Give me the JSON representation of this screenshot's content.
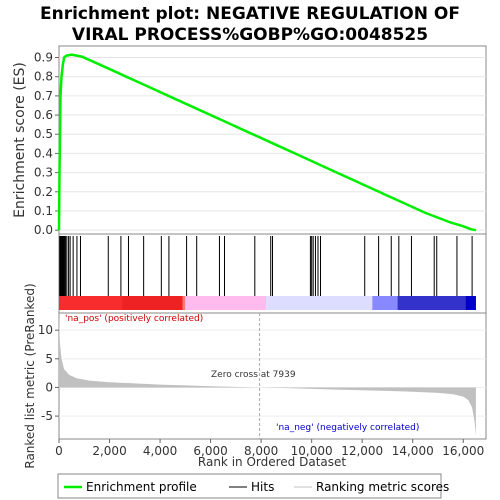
{
  "title_line1": "Enrichment plot: NEGATIVE REGULATION OF",
  "title_line2": "VIRAL PROCESS%GOBP%GO:0048525",
  "chart_data": [
    {
      "type": "line",
      "ylabel": "Enrichment score (ES)",
      "ylim": [
        -0.02,
        0.96
      ],
      "yticks": [
        0.0,
        0.1,
        0.2,
        0.3,
        0.4,
        0.5,
        0.6,
        0.7,
        0.8,
        0.9
      ],
      "ytick_labels": [
        "0.0",
        "0.1",
        "0.2",
        "0.3",
        "0.4",
        "0.5",
        "0.6",
        "0.7",
        "0.8",
        "0.9"
      ],
      "xlim": [
        0,
        16900
      ],
      "series": [
        {
          "name": "Enrichment profile",
          "color": "#00ee00",
          "x": [
            0,
            20,
            60,
            100,
            150,
            200,
            300,
            500,
            700,
            900,
            1500,
            2500,
            3500,
            4500,
            5500,
            6500,
            7500,
            8500,
            9500,
            10500,
            11500,
            12500,
            13500,
            14500,
            15500,
            16000,
            16300,
            16500
          ],
          "y": [
            0.0,
            0.3,
            0.7,
            0.8,
            0.86,
            0.9,
            0.91,
            0.915,
            0.91,
            0.905,
            0.87,
            0.81,
            0.75,
            0.69,
            0.63,
            0.57,
            0.51,
            0.45,
            0.39,
            0.33,
            0.27,
            0.21,
            0.15,
            0.09,
            0.04,
            0.02,
            0.005,
            0.0
          ]
        }
      ]
    },
    {
      "type": "hits",
      "legend_name": "Hits",
      "hit_positions": [
        30,
        60,
        90,
        110,
        130,
        150,
        170,
        190,
        220,
        260,
        310,
        380,
        440,
        560,
        710,
        850,
        1950,
        2450,
        2750,
        3350,
        4050,
        4350,
        5050,
        5450,
        6350,
        6550,
        7750,
        8380,
        8450,
        9950,
        10000,
        10060,
        10150,
        10250,
        10350,
        12100,
        12650,
        13150,
        13450,
        13950,
        14850,
        14950,
        15750,
        16350
      ],
      "color_bar": [
        "#ee2222",
        "#ff7777",
        "#ffbbee",
        "#ddddff",
        "#8888ff",
        "#3333cc"
      ]
    },
    {
      "type": "area",
      "ylabel": "Ranked list metric (PreRanked)",
      "xlabel": "Rank in Ordered Dataset",
      "ylim": [
        -9,
        13
      ],
      "yticks": [
        10,
        5,
        0,
        -5
      ],
      "ytick_labels": [
        "10",
        "5",
        "0",
        "-5"
      ],
      "xlim": [
        0,
        16900
      ],
      "xticks": [
        0,
        2000,
        4000,
        6000,
        8000,
        10000,
        12000,
        14000,
        16000
      ],
      "xtick_labels": [
        "0",
        "2,000",
        "4,000",
        "6,000",
        "8,000",
        "10,000",
        "12,000",
        "14,000",
        "16,000"
      ],
      "x": [
        0,
        30,
        100,
        200,
        400,
        700,
        1200,
        2000,
        3000,
        4000,
        5000,
        6000,
        7000,
        7939,
        9000,
        10000,
        11000,
        12000,
        13000,
        14000,
        15000,
        15600,
        16000,
        16200,
        16350,
        16450,
        16500
      ],
      "y": [
        13,
        8,
        5,
        3.2,
        2.2,
        1.6,
        1.2,
        0.9,
        0.7,
        0.5,
        0.35,
        0.2,
        0.1,
        0.0,
        -0.12,
        -0.25,
        -0.38,
        -0.5,
        -0.6,
        -0.75,
        -0.95,
        -1.2,
        -1.6,
        -2.2,
        -3.5,
        -6,
        -8.5
      ],
      "annotations": {
        "zero_cross": "Zero cross at 7939",
        "pos_label": "'na_pos' (positively correlated)",
        "neg_label": "'na_neg' (negatively correlated)"
      }
    }
  ],
  "legend": {
    "enrichment": "Enrichment profile",
    "hits": "Hits",
    "ranking": "Ranking metric scores"
  },
  "colors": {
    "es_line": "#00ee00",
    "metric_fill": "#c0c0c0",
    "pos_label": "#cc0000",
    "neg_label": "#0000cc"
  }
}
